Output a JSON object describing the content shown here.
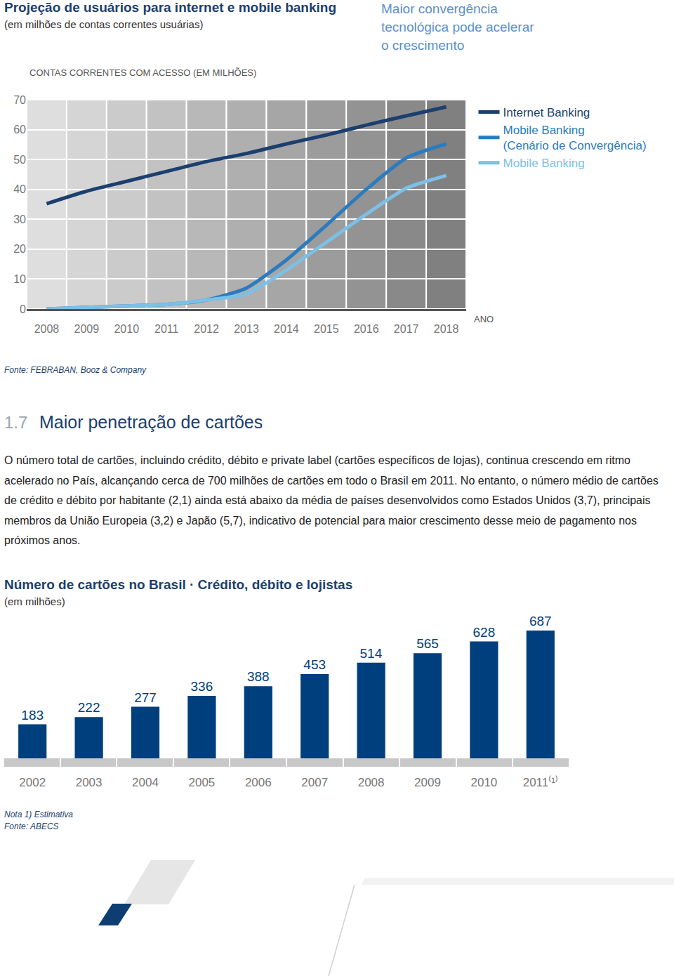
{
  "chart_data": [
    {
      "type": "line",
      "title": "Projeção de usuários para internet e mobile banking",
      "subtitle": "(em milhões de contas correntes usuárias)",
      "annotation": "Maior convergência tecnológica pode acelerar o crescimento",
      "ylabel": "CONTAS CORRENTES COM ACESSO (EM MILHÕES)",
      "xlabel": "ANO",
      "x": [
        2008,
        2009,
        2010,
        2011,
        2012,
        2013,
        2014,
        2015,
        2016,
        2017,
        2018
      ],
      "series": [
        {
          "name": "Internet Banking",
          "color": "#1b3f6e",
          "values": [
            35.2,
            39.4,
            42.7,
            46,
            49.3,
            52,
            55.2,
            58.2,
            61.5,
            64.6,
            67.6
          ]
        },
        {
          "name": "Mobile Banking (Cenário de Convergência)",
          "color": "#2b7bbf",
          "values": [
            0,
            0.5,
            1,
            1.5,
            3,
            7,
            16.4,
            28,
            40,
            50.5,
            55.2
          ]
        },
        {
          "name": "Mobile Banking",
          "color": "#7cc0e8",
          "values": [
            0,
            0.5,
            1,
            1.5,
            3,
            5,
            13,
            22.3,
            31.7,
            40.4,
            44.6
          ]
        }
      ],
      "xlim": [
        2007.5,
        2018.5
      ],
      "xticks": [
        2008,
        2009,
        2010,
        2011,
        2012,
        2013,
        2014,
        2015,
        2016,
        2017,
        2018
      ],
      "ylim": [
        0,
        70
      ],
      "yticks": [
        0,
        10,
        20,
        30,
        40,
        50,
        60,
        70
      ],
      "grid": true,
      "legend": "right",
      "source": "Fonte: FEBRABAN, Booz & Company"
    },
    {
      "type": "bar",
      "title": "Número de cartões no Brasil · Crédito, débito e lojistas",
      "subtitle": "(em milhões)",
      "categories": [
        "2002",
        "2003",
        "2004",
        "2005",
        "2006",
        "2007",
        "2008",
        "2009",
        "2010",
        "2011⁽¹⁾"
      ],
      "values": [
        183,
        222,
        277,
        336,
        388,
        453,
        514,
        565,
        628,
        687
      ],
      "color": "#003f7d",
      "ylim": [
        0,
        800
      ],
      "grid": false,
      "data_labels": true,
      "tick_labels": "x",
      "note": "Nota 1) Estimativa",
      "source": "Fonte: ABECS"
    }
  ],
  "section": {
    "number": "1.7",
    "heading": "Maior penetração de cartões",
    "paragraph": "O número total de cartões, incluindo crédito, débito e private label (cartões específicos de lojas), continua crescendo em ritmo acelerado no País, alcançando cerca de 700 milhões de cartões em todo o Brasil em 2011. No entanto, o número médio de cartões de crédito e débito por habitante (2,1) ainda está abaixo da média de países desenvolvidos como Estados Unidos (3,7), principais membros da União Europeia (3,2) e Japão (5,7), indicativo de potencial para maior crescimento desse meio de pagamento nos próximos anos."
  }
}
